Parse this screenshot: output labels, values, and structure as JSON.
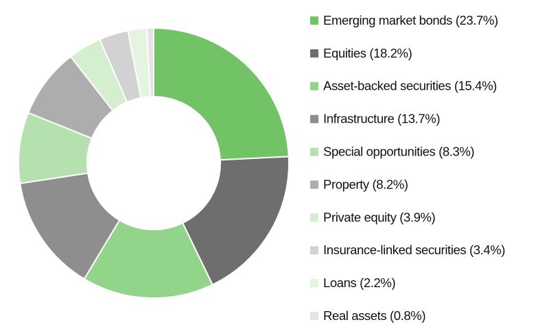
{
  "chart_data": {
    "type": "donut",
    "categories": [
      "Emerging market bonds (23.7%)",
      "Equities (18.2%)",
      "Asset-backed securities (15.4%)",
      "Infrastructure (13.7%)",
      "Special opportunities (8.3%)",
      "Property (8.2%)",
      "Private equity (3.9%)",
      "Insurance-linked securities (3.4%)",
      "Loans (2.2%)",
      "Real assets (0.8%)"
    ],
    "values": [
      23.7,
      18.2,
      15.4,
      13.7,
      8.3,
      8.2,
      3.9,
      3.4,
      2.2,
      0.8
    ],
    "colors": [
      "#72c266",
      "#6e6e6e",
      "#93d48b",
      "#8e8e8e",
      "#b4e1ad",
      "#adadad",
      "#d5eecf",
      "#d2d2d2",
      "#e5f4e1",
      "#e4e4e4"
    ],
    "legend": "right"
  }
}
